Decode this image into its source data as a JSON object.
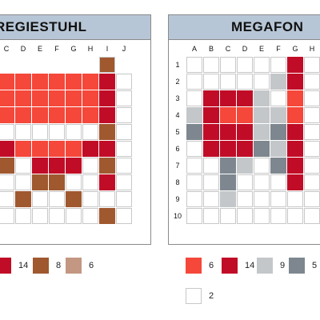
{
  "left_puzzle": {
    "title": "REGIESTUHL",
    "columns": [
      "C",
      "D",
      "E",
      "F",
      "G",
      "H",
      "I",
      "J"
    ],
    "grid": [
      "________",
      "xxxxxxbx",
      "ooooooRw",
      "ooooooRw",
      "ooooooRw",
      "wwwwwwbw",
      "RooooRRw",
      "bwRRRwbw",
      "wwbbwwRw",
      "wbwwbwww",
      "wwwwwwbw"
    ],
    "legend": [
      {
        "color_key": "R",
        "count": "14"
      },
      {
        "color_key": "b",
        "count": "8"
      },
      {
        "color_key": "p",
        "count": "6"
      }
    ]
  },
  "right_puzzle": {
    "title": "MEGAFON",
    "columns": [
      "A",
      "B",
      "C",
      "D",
      "E",
      "F",
      "G",
      "H"
    ],
    "rows": [
      "1",
      "2",
      "3",
      "4",
      "5",
      "6",
      "7",
      "8",
      "9",
      "10"
    ],
    "grid": [
      "wwwwwwRw",
      "wwwwwgRw",
      "wRRRgwow",
      "gRooggow",
      "dRRRgdRw",
      "wRRRdgRw",
      "wwdgwdRw",
      "wwdwwwRw",
      "wwgwwwww",
      "wwwwwwww"
    ],
    "legend": [
      {
        "color_key": "o",
        "count": "6"
      },
      {
        "color_key": "R",
        "count": "14"
      },
      {
        "color_key": "g",
        "count": "9"
      },
      {
        "color_key": "d",
        "count": "5"
      },
      {
        "color_key": "w",
        "count": "2"
      }
    ]
  },
  "colors": {
    "o": "#f5473a",
    "R": "#c10c27",
    "b": "#a0582f",
    "p": "#c39782",
    "g": "#c4c7c9",
    "d": "#7e878f",
    "w": "#ffffff"
  }
}
